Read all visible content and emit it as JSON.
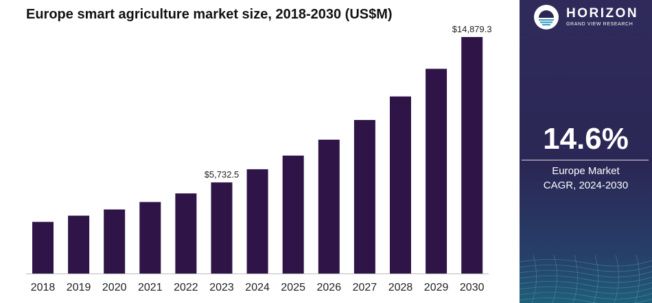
{
  "chart_data": {
    "type": "bar",
    "title": "Europe smart agriculture market size, 2018-2030 (US$M)",
    "xlabel": "",
    "ylabel": "",
    "categories": [
      "2018",
      "2019",
      "2020",
      "2021",
      "2022",
      "2023",
      "2024",
      "2025",
      "2026",
      "2027",
      "2028",
      "2029",
      "2030"
    ],
    "values": [
      3250,
      3640,
      4030,
      4500,
      5040,
      5732.5,
      6560,
      7420,
      8420,
      9660,
      11140,
      12880,
      14879.3
    ],
    "data_labels": [
      {
        "category": "2023",
        "text": "$5,732.5"
      },
      {
        "category": "2030",
        "text": "$14,879.3"
      }
    ],
    "ylim": [
      0,
      14879.3
    ],
    "grid": false,
    "bar_color": "#2f1448"
  },
  "side_panel": {
    "brand_name": "HORIZON",
    "brand_sub": "GRAND VIEW RESEARCH",
    "cagr_value": "14.6%",
    "cagr_label_line1": "Europe Market",
    "cagr_label_line2": "CAGR, 2024-2030",
    "colors": {
      "background": "#2b2755",
      "accent_bottom": "#1f5f78"
    }
  }
}
